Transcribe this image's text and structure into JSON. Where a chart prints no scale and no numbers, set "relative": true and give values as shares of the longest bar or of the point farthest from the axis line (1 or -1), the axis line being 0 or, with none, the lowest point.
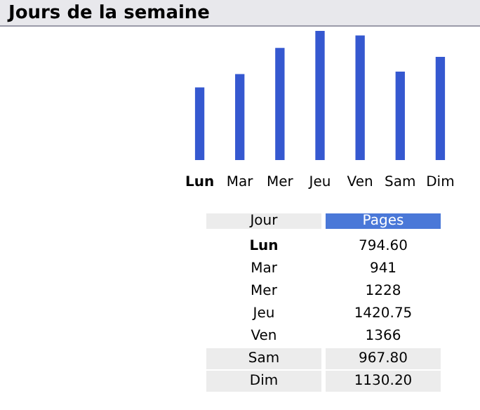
{
  "chart_data": [
    {
      "type": "bar",
      "title": "Jours de la semaine",
      "categories": [
        "Lun",
        "Mar",
        "Mer",
        "Jeu",
        "Ven",
        "Sam",
        "Dim"
      ],
      "values": [
        0.559,
        0.662,
        0.864,
        1,
        0.961,
        0.681,
        0.796
      ],
      "color": "#3558d0",
      "relative": true
    },
    {
      "type": "other",
      "annotations": [
        "Jour",
        "Pages",
        "Lun",
        "794.60",
        "Mar",
        "941",
        "Mer",
        "1228",
        "Jeu",
        "1420.75",
        "Ven",
        "1366",
        "Sam",
        "967.80",
        "Dim",
        "1130.20"
      ]
    }
  ]
}
